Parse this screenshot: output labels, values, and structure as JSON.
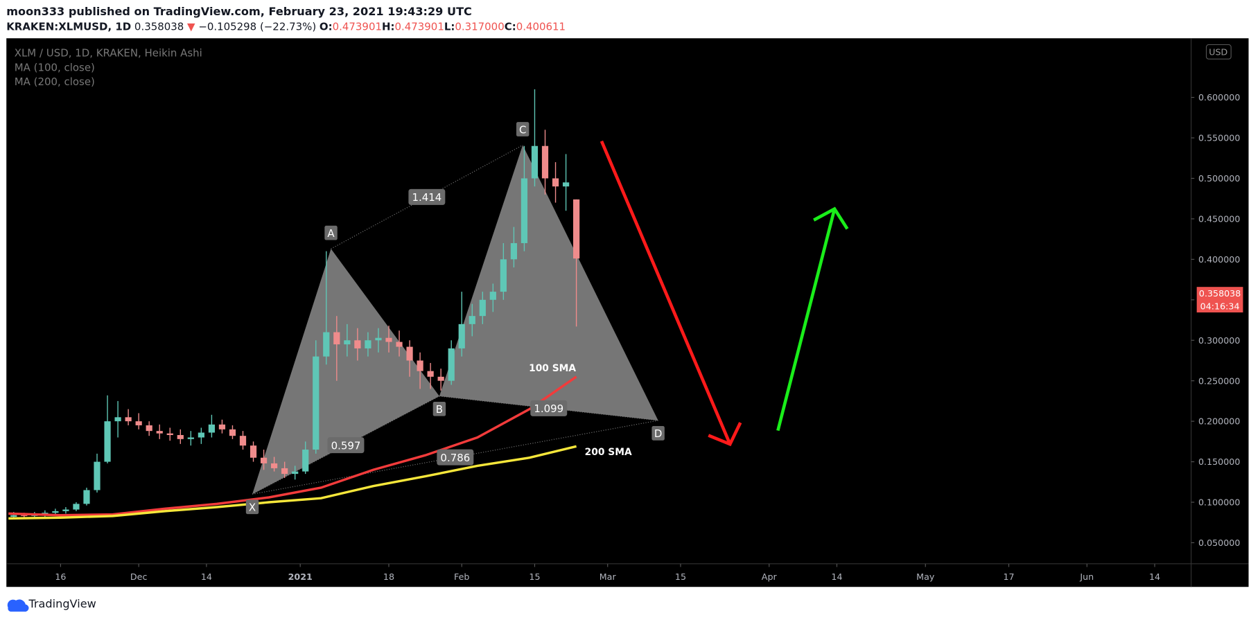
{
  "header": {
    "published": "moon333 published on TradingView.com, February 23, 2021 19:43:29 UTC",
    "symbol": "KRAKEN:XLMUSD, 1D",
    "arrow": "▼",
    "change": "−0.105298 (−22.73%)",
    "ohlc": [
      {
        "label": "O:",
        "value": "0.473901"
      },
      {
        "label": "H:",
        "value": "0.473901"
      },
      {
        "label": "L:",
        "value": "0.317000"
      },
      {
        "label": "C:",
        "value": "0.400611"
      }
    ]
  },
  "footer": {
    "brand": "TradingView"
  },
  "chart_data": {
    "type": "candlestick",
    "legend": [
      "XLM / USD, 1D, KRAKEN, Heikin Ashi",
      "MA (100, close)",
      "MA (200, close)"
    ],
    "currency": "USD",
    "countdown": "04:16:34",
    "last_price": 0.358038,
    "up_color": "#5fc7b6",
    "down_color": "#f08c8c",
    "grid": false,
    "xlim": [
      4.6,
      232
    ],
    "ylim": [
      0.024,
      0.673
    ],
    "xticks": [
      {
        "value": 15,
        "label": "16"
      },
      {
        "value": 30,
        "label": "Dec"
      },
      {
        "value": 43,
        "label": "14"
      },
      {
        "value": 61,
        "label": "2021"
      },
      {
        "value": 78,
        "label": "18"
      },
      {
        "value": 92,
        "label": "Feb"
      },
      {
        "value": 106,
        "label": "15"
      },
      {
        "value": 120,
        "label": "Mar"
      },
      {
        "value": 134,
        "label": "15"
      },
      {
        "value": 151,
        "label": "Apr"
      },
      {
        "value": 164,
        "label": "14"
      },
      {
        "value": 181,
        "label": "May"
      },
      {
        "value": 197,
        "label": "17"
      },
      {
        "value": 212,
        "label": "Jun"
      },
      {
        "value": 225,
        "label": "14"
      }
    ],
    "yticks": [
      {
        "value": 0.05,
        "label": "0.050000"
      },
      {
        "value": 0.1,
        "label": "0.100000"
      },
      {
        "value": 0.15,
        "label": "0.150000"
      },
      {
        "value": 0.2,
        "label": "0.200000"
      },
      {
        "value": 0.25,
        "label": "0.250000"
      },
      {
        "value": 0.3,
        "label": "0.300000"
      },
      {
        "value": 0.35,
        "label": "0.350000"
      },
      {
        "value": 0.4,
        "label": "0.400000"
      },
      {
        "value": 0.45,
        "label": "0.450000"
      },
      {
        "value": 0.5,
        "label": "0.500000"
      },
      {
        "value": 0.55,
        "label": "0.550000"
      },
      {
        "value": 0.6,
        "label": "0.600000"
      }
    ],
    "x": [
      6,
      8,
      10,
      12,
      14,
      16,
      18,
      20,
      22,
      24,
      26,
      28,
      30,
      32,
      34,
      36,
      38,
      40,
      42,
      44,
      46,
      48,
      50,
      52,
      54,
      56,
      58,
      60,
      62,
      64,
      66,
      68,
      70,
      72,
      74,
      76,
      78,
      80,
      82,
      84,
      86,
      88,
      90,
      92,
      94,
      96,
      98,
      100,
      102,
      104,
      106,
      108,
      110,
      112,
      114
    ],
    "open": [
      0.082,
      0.084,
      0.083,
      0.085,
      0.087,
      0.089,
      0.091,
      0.098,
      0.115,
      0.15,
      0.2,
      0.205,
      0.2,
      0.195,
      0.188,
      0.185,
      0.183,
      0.178,
      0.18,
      0.186,
      0.196,
      0.19,
      0.182,
      0.17,
      0.155,
      0.148,
      0.142,
      0.135,
      0.138,
      0.165,
      0.28,
      0.31,
      0.295,
      0.3,
      0.29,
      0.3,
      0.303,
      0.298,
      0.292,
      0.275,
      0.262,
      0.255,
      0.25,
      0.29,
      0.32,
      0.33,
      0.35,
      0.36,
      0.4,
      0.42,
      0.5,
      0.54,
      0.5,
      0.49,
      0.474
    ],
    "high": [
      0.088,
      0.087,
      0.088,
      0.09,
      0.092,
      0.094,
      0.1,
      0.118,
      0.16,
      0.232,
      0.225,
      0.215,
      0.21,
      0.2,
      0.196,
      0.192,
      0.19,
      0.188,
      0.192,
      0.208,
      0.202,
      0.195,
      0.188,
      0.175,
      0.165,
      0.156,
      0.15,
      0.145,
      0.175,
      0.3,
      0.41,
      0.33,
      0.32,
      0.315,
      0.31,
      0.315,
      0.318,
      0.312,
      0.3,
      0.285,
      0.272,
      0.265,
      0.3,
      0.36,
      0.345,
      0.36,
      0.37,
      0.42,
      0.44,
      0.54,
      0.61,
      0.56,
      0.52,
      0.53,
      0.474
    ],
    "low": [
      0.079,
      0.08,
      0.08,
      0.082,
      0.084,
      0.086,
      0.089,
      0.096,
      0.112,
      0.148,
      0.18,
      0.195,
      0.19,
      0.182,
      0.178,
      0.176,
      0.172,
      0.17,
      0.172,
      0.18,
      0.185,
      0.178,
      0.165,
      0.15,
      0.14,
      0.138,
      0.13,
      0.128,
      0.135,
      0.16,
      0.27,
      0.25,
      0.28,
      0.275,
      0.28,
      0.285,
      0.285,
      0.28,
      0.255,
      0.24,
      0.24,
      0.238,
      0.245,
      0.28,
      0.305,
      0.32,
      0.335,
      0.35,
      0.39,
      0.41,
      0.49,
      0.48,
      0.47,
      0.46,
      0.317
    ],
    "close": [
      0.084,
      0.083,
      0.085,
      0.087,
      0.089,
      0.091,
      0.098,
      0.115,
      0.15,
      0.2,
      0.205,
      0.2,
      0.195,
      0.188,
      0.185,
      0.183,
      0.178,
      0.18,
      0.186,
      0.196,
      0.19,
      0.182,
      0.17,
      0.155,
      0.148,
      0.142,
      0.135,
      0.138,
      0.165,
      0.28,
      0.31,
      0.295,
      0.3,
      0.29,
      0.3,
      0.303,
      0.298,
      0.292,
      0.275,
      0.262,
      0.255,
      0.25,
      0.29,
      0.32,
      0.33,
      0.35,
      0.36,
      0.4,
      0.42,
      0.5,
      0.54,
      0.5,
      0.49,
      0.495,
      0.401
    ],
    "series": [
      {
        "name": "100 SMA",
        "color": "#f23b3b",
        "x": [
          5,
          15,
          25,
          35,
          45,
          55,
          65,
          75,
          85,
          95,
          105,
          114
        ],
        "values": [
          0.086,
          0.084,
          0.085,
          0.092,
          0.098,
          0.106,
          0.118,
          0.14,
          0.158,
          0.18,
          0.215,
          0.255
        ]
      },
      {
        "name": "200 SMA",
        "color": "#f5e63a",
        "x": [
          5,
          15,
          25,
          35,
          45,
          55,
          65,
          75,
          85,
          95,
          105,
          114
        ],
        "values": [
          0.08,
          0.081,
          0.083,
          0.089,
          0.094,
          0.1,
          0.105,
          0.12,
          0.132,
          0.145,
          0.155,
          0.169
        ]
      }
    ],
    "pattern": {
      "labels": [
        "X",
        "A",
        "B",
        "C",
        "D"
      ],
      "x": [
        51.8,
        66.9,
        87.7,
        103.7,
        129.7
      ],
      "values": [
        0.11,
        0.413,
        0.231,
        0.541,
        0.201
      ],
      "ratios": [
        "0.597",
        "1.414",
        "1.099",
        "0.786"
      ]
    }
  }
}
